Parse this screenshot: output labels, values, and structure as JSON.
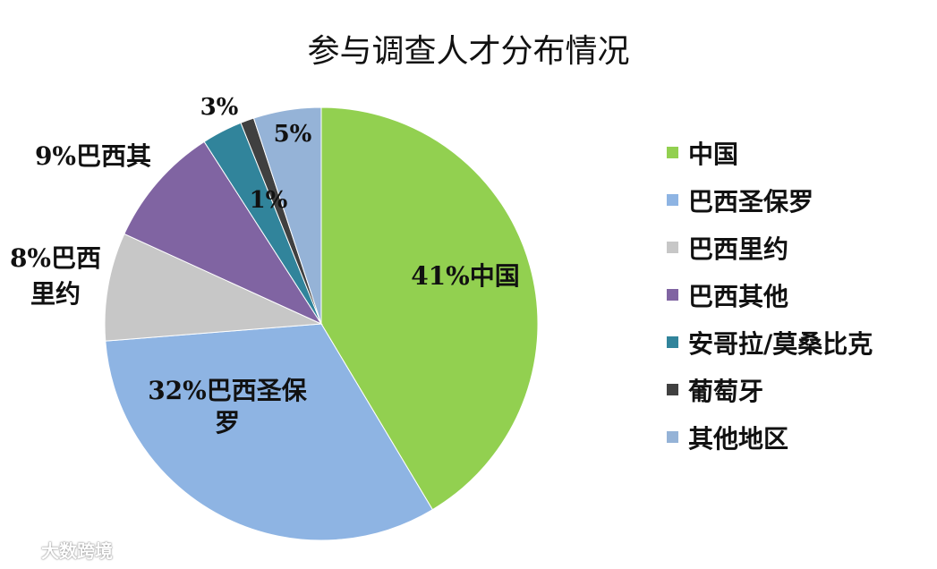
{
  "chart_data": {
    "type": "pie",
    "title": "参与调查人才分布情况",
    "slices": [
      {
        "name": "中国",
        "value": 41,
        "color": "#92d050",
        "label": "41%中国",
        "label_lines": [
          "41%中国"
        ]
      },
      {
        "name": "巴西圣保罗",
        "value": 32,
        "color": "#8eb4e3",
        "label": "32%巴西圣保罗",
        "label_lines": [
          "32%巴西圣保",
          "罗"
        ]
      },
      {
        "name": "巴西里约",
        "value": 8,
        "color": "#c7c7c7",
        "label": "8%巴西里约",
        "label_lines": [
          "8%巴西",
          "里约"
        ]
      },
      {
        "name": "巴西其他",
        "value": 9,
        "color": "#8064a2",
        "label": "9%巴西其",
        "label_lines": [
          "9%巴西其"
        ]
      },
      {
        "name": "安哥拉/莫桑比克",
        "value": 3,
        "color": "#31849b",
        "label": "3%",
        "label_lines": [
          "3%"
        ]
      },
      {
        "name": "葡萄牙",
        "value": 1,
        "color": "#404040",
        "label": "1%",
        "label_lines": [
          "1%"
        ]
      },
      {
        "name": "其他地区",
        "value": 5,
        "color": "#95b3d7",
        "label": "5%",
        "label_lines": [
          "5%"
        ]
      }
    ],
    "legend_position": "right"
  },
  "watermark": {
    "text": "大数跨境",
    "icon": "cloud-logo-icon"
  }
}
